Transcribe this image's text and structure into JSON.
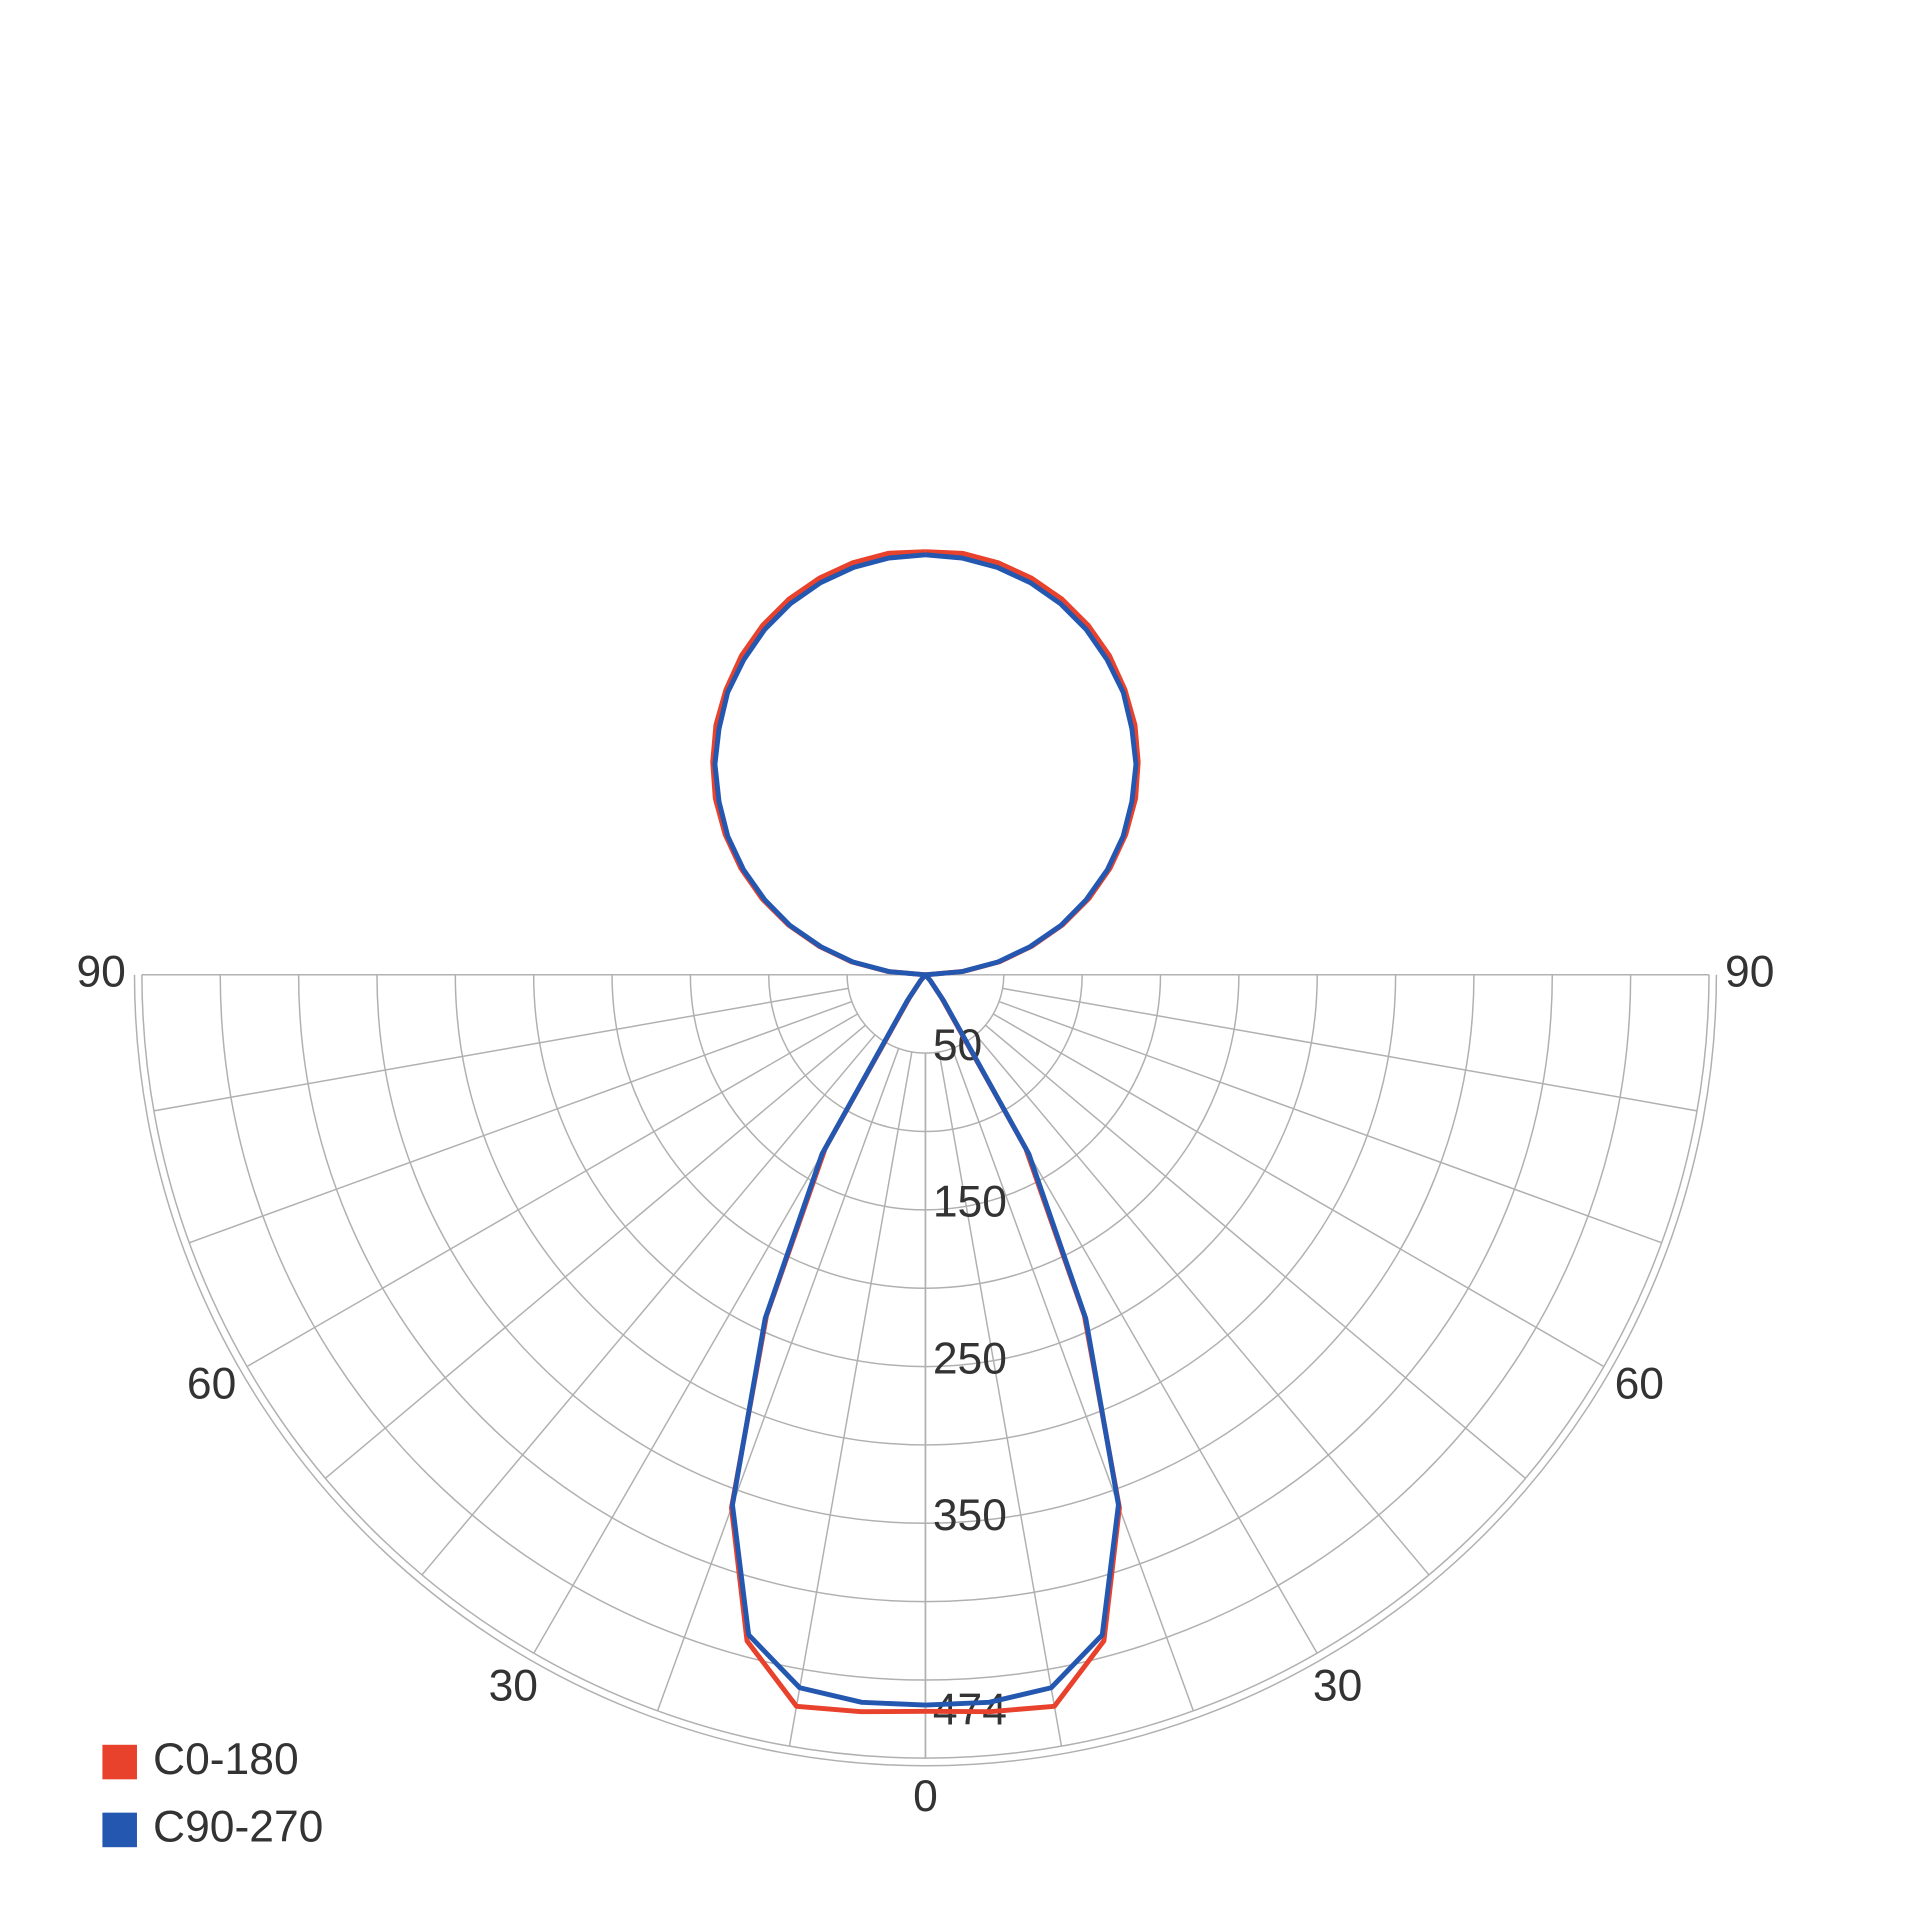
{
  "chart_data": {
    "type": "polar",
    "angles": [
      0,
      5,
      10,
      15,
      20,
      25,
      30,
      35,
      40,
      45,
      50,
      55,
      60,
      65,
      70,
      75,
      80,
      85,
      90,
      95,
      100,
      105,
      110,
      115,
      120,
      125,
      130,
      135,
      140,
      145,
      150,
      155,
      160,
      165,
      170,
      175,
      180
    ],
    "series": [
      {
        "name": "C0-180",
        "color": "#e8412c",
        "values": [
          470,
          472,
          474,
          440,
          362,
          240,
          128,
          18,
          5,
          0,
          0,
          0,
          0,
          0,
          0,
          0,
          0,
          0,
          0,
          24,
          48,
          70,
          93,
          115,
          136,
          156,
          175,
          192,
          208,
          222,
          235,
          246,
          255,
          262,
          267,
          270,
          270
        ]
      },
      {
        "name": "C90-270",
        "color": "#2457b0",
        "values": [
          466,
          466,
          462,
          436,
          360,
          242,
          132,
          20,
          5,
          0,
          0,
          0,
          0,
          0,
          0,
          0,
          0,
          0,
          0,
          23,
          47,
          69,
          92,
          113,
          134,
          154,
          172,
          190,
          205,
          220,
          232,
          243,
          252,
          259,
          264,
          267,
          268
        ]
      }
    ],
    "rlim": [
      0,
      500
    ],
    "rgrid": [
      50,
      100,
      150,
      200,
      250,
      300,
      350,
      400,
      450,
      500
    ],
    "rticks": [
      50,
      150,
      250,
      350,
      474
    ],
    "thetagrid": [
      0,
      10,
      20,
      30,
      40,
      50,
      60,
      70,
      80,
      90
    ],
    "thetaticks": [
      0,
      30,
      60,
      90
    ],
    "grid": true
  }
}
